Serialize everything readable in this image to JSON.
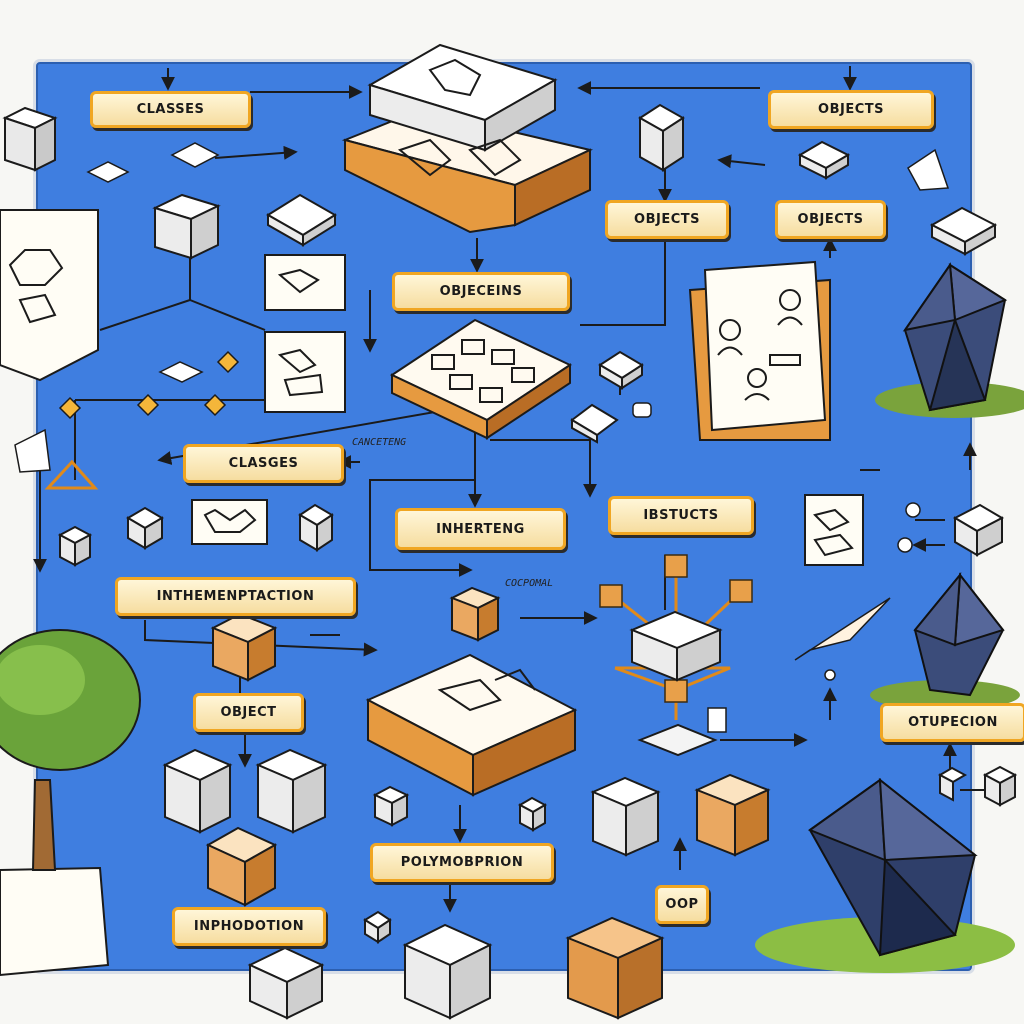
{
  "labels": {
    "classes_top": "CLASSES",
    "objects_top_right": "OBJECTS",
    "objects_mid": "OBJECTS",
    "objects_right": "OBJECTS",
    "objecteins": "OBJECEINS",
    "classes_mid": "CLASGES",
    "inherteng": "INHERTENG",
    "ibstucts": "IBSTUCTS",
    "inthemenptaction": "INTHEMENPTACTION",
    "object": "OBJECT",
    "polymobprion": "POLYMOBPRION",
    "oop": "OOP",
    "otupecion": "OTUPECION",
    "inphodotion": "INPHODOTION"
  },
  "annotations": {
    "canceteng": "CANCETENG",
    "cocpomal": "COCPOMAL"
  },
  "colors": {
    "board": "#3f7ee0",
    "label_border": "#f0a622",
    "cube_face": "#f2f2f2",
    "gem": "#2f3f6a"
  }
}
